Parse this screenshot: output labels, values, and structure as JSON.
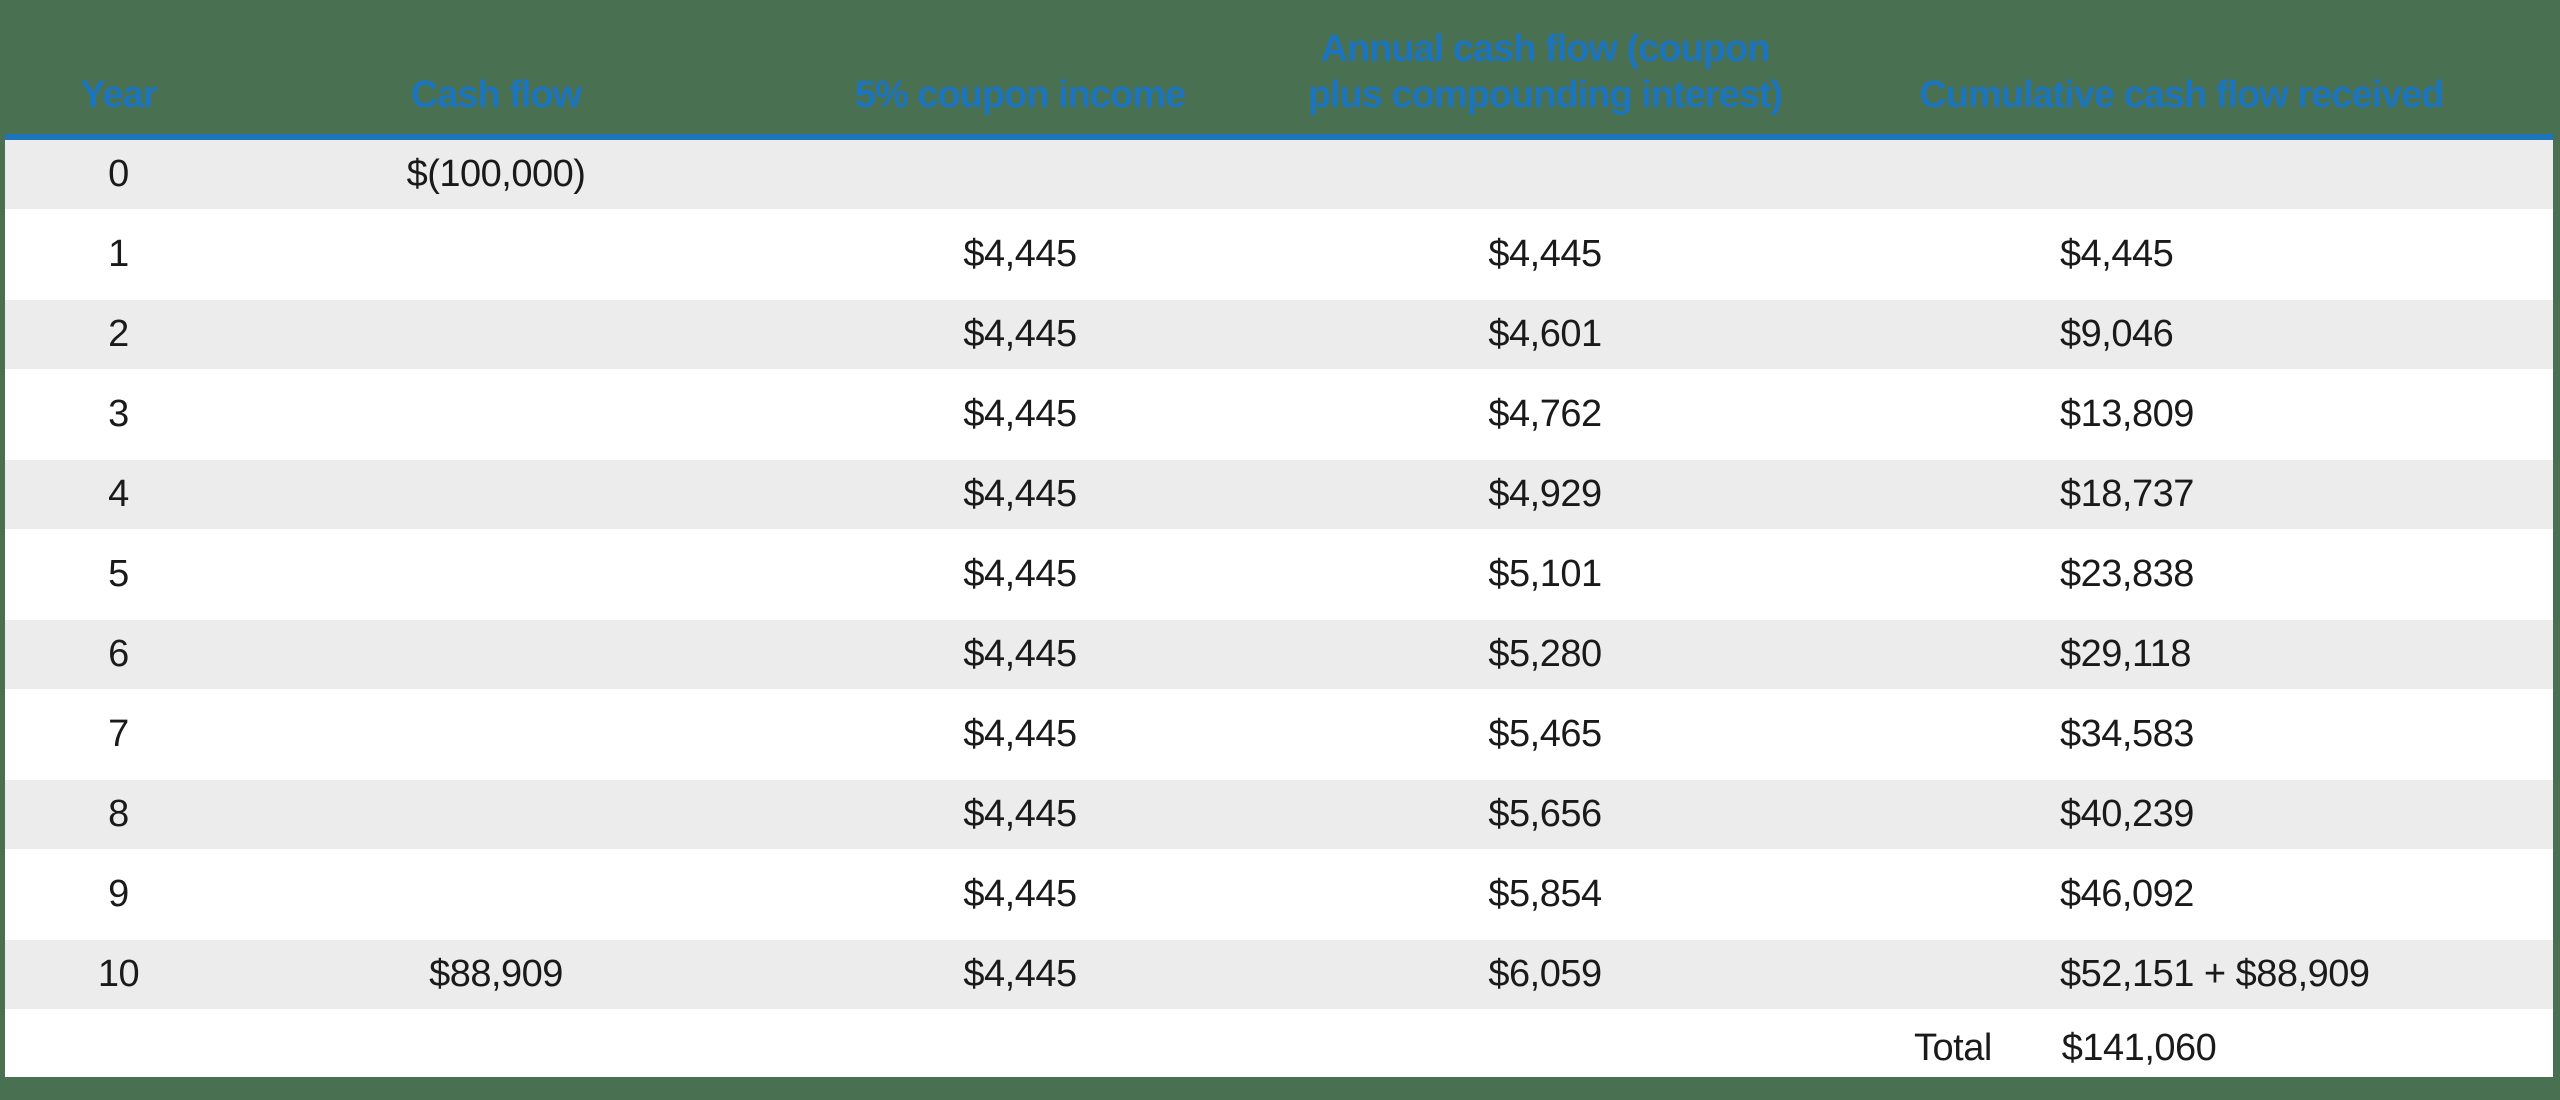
{
  "colors": {
    "accent_blue": "#1C75BC",
    "stripe_gray": "#ECECEC",
    "background_green": "#4A7052",
    "text": "#1A1A1A"
  },
  "table": {
    "header": {
      "year": "Year",
      "cash_flow": "Cash flow",
      "coupon": "5% coupon income",
      "annual_line1": "Annual cash flow (coupon",
      "annual_line2": "plus compounding interest)",
      "cumulative": "Cumulative cash flow received"
    },
    "rows": [
      {
        "year": "0",
        "cash_flow": "$(100,000)",
        "coupon": "",
        "annual": "",
        "cumulative": ""
      },
      {
        "year": "1",
        "cash_flow": "",
        "coupon": "$4,445",
        "annual": "$4,445",
        "cumulative": "$4,445"
      },
      {
        "year": "2",
        "cash_flow": "",
        "coupon": "$4,445",
        "annual": "$4,601",
        "cumulative": "$9,046"
      },
      {
        "year": "3",
        "cash_flow": "",
        "coupon": "$4,445",
        "annual": "$4,762",
        "cumulative": "$13,809"
      },
      {
        "year": "4",
        "cash_flow": "",
        "coupon": "$4,445",
        "annual": "$4,929",
        "cumulative": "$18,737"
      },
      {
        "year": "5",
        "cash_flow": "",
        "coupon": "$4,445",
        "annual": "$5,101",
        "cumulative": "$23,838"
      },
      {
        "year": "6",
        "cash_flow": "",
        "coupon": "$4,445",
        "annual": "$5,280",
        "cumulative": "$29,118"
      },
      {
        "year": "7",
        "cash_flow": "",
        "coupon": "$4,445",
        "annual": "$5,465",
        "cumulative": "$34,583"
      },
      {
        "year": "8",
        "cash_flow": "",
        "coupon": "$4,445",
        "annual": "$5,656",
        "cumulative": "$40,239"
      },
      {
        "year": "9",
        "cash_flow": "",
        "coupon": "$4,445",
        "annual": "$5,854",
        "cumulative": "$46,092"
      },
      {
        "year": "10",
        "cash_flow": "$88,909",
        "coupon": "$4,445",
        "annual": "$6,059",
        "cumulative": "$52,151 + $88,909"
      }
    ],
    "total": {
      "label": "Total",
      "value": "$141,060"
    }
  },
  "chart_data": {
    "type": "table",
    "title": "Bond cash flow schedule with 5% coupon reinvested",
    "columns": [
      "Year",
      "Cash flow",
      "5% coupon income",
      "Annual cash flow (coupon plus compounding interest)",
      "Cumulative cash flow received"
    ],
    "rows": [
      [
        0,
        -100000,
        null,
        null,
        null
      ],
      [
        1,
        null,
        4445,
        4445,
        4445
      ],
      [
        2,
        null,
        4445,
        4601,
        9046
      ],
      [
        3,
        null,
        4445,
        4762,
        13809
      ],
      [
        4,
        null,
        4445,
        4929,
        18737
      ],
      [
        5,
        null,
        4445,
        5101,
        23838
      ],
      [
        6,
        null,
        4445,
        5280,
        29118
      ],
      [
        7,
        null,
        4445,
        5465,
        34583
      ],
      [
        8,
        null,
        4445,
        5656,
        40239
      ],
      [
        9,
        null,
        4445,
        5854,
        46092
      ],
      [
        10,
        88909,
        4445,
        6059,
        52151
      ]
    ],
    "total": 141060,
    "notes": "Year 0 cash flow shown as $(100,000); year 10 cumulative shown as $52,151 + $88,909; layout: striped rows, blue header rule"
  }
}
